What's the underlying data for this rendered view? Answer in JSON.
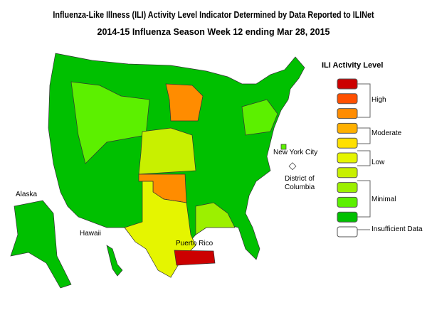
{
  "title": "Influenza-Like Illness (ILI) Activity Level Indicator Determined by Data Reported to ILINet",
  "subtitle": "2014-15  Influenza Season Week  12 ending Mar 28, 2015",
  "map_labels": {
    "alaska": "Alaska",
    "hawaii": "Hawaii",
    "puerto_rico": "Puerto Rico",
    "nyc": "New York City",
    "dc": "District of Columbia"
  },
  "legend": {
    "title": "ILI Activity Level",
    "swatches": [
      "#cc0000",
      "#ff5000",
      "#ff8c00",
      "#ffb000",
      "#ffe000",
      "#e5f500",
      "#c8f000",
      "#9cf000",
      "#5cf000",
      "#00c000",
      "#ffffff"
    ],
    "groups": {
      "high": "High",
      "moderate": "Moderate",
      "low": "Low",
      "minimal": "Minimal",
      "insufficient": "Insufficient Data"
    }
  }
}
